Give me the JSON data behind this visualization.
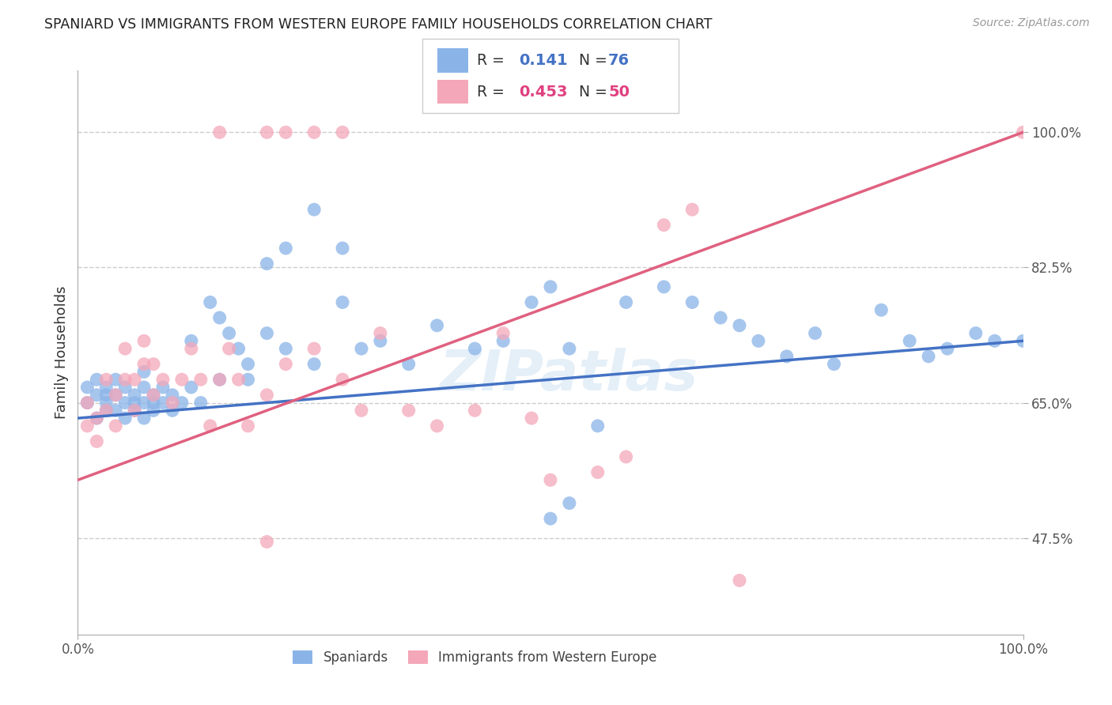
{
  "title": "SPANIARD VS IMMIGRANTS FROM WESTERN EUROPE FAMILY HOUSEHOLDS CORRELATION CHART",
  "source": "Source: ZipAtlas.com",
  "ylabel": "Family Households",
  "x_min": 0.0,
  "x_max": 100.0,
  "y_min": 35.0,
  "y_max": 108.0,
  "y_ticks": [
    47.5,
    65.0,
    82.5,
    100.0
  ],
  "y_tick_labels": [
    "47.5%",
    "65.0%",
    "82.5%",
    "100.0%"
  ],
  "x_ticks": [
    0.0,
    100.0
  ],
  "x_tick_labels": [
    "0.0%",
    "100.0%"
  ],
  "R_blue": 0.141,
  "N_blue": 76,
  "R_pink": 0.453,
  "N_pink": 50,
  "legend_label_blue": "Spaniards",
  "legend_label_pink": "Immigrants from Western Europe",
  "blue_color": "#8ab4e8",
  "pink_color": "#f4a7b9",
  "blue_line_color": "#4472c4",
  "pink_line_color": "#e06080",
  "blue_scatter": {
    "x": [
      1,
      1,
      2,
      2,
      2,
      3,
      3,
      3,
      3,
      4,
      4,
      4,
      5,
      5,
      5,
      6,
      6,
      6,
      7,
      7,
      7,
      7,
      8,
      8,
      8,
      9,
      9,
      10,
      10,
      11,
      12,
      12,
      13,
      14,
      15,
      15,
      16,
      17,
      18,
      18,
      20,
      22,
      25,
      28,
      30,
      32,
      35,
      38,
      42,
      45,
      48,
      50,
      52,
      55,
      58,
      62,
      65,
      68,
      70,
      72,
      75,
      78,
      80,
      85,
      88,
      90,
      92,
      95,
      97,
      100,
      22,
      28,
      50,
      52,
      20,
      25
    ],
    "y": [
      65,
      67,
      63,
      66,
      68,
      64,
      65,
      67,
      66,
      64,
      66,
      68,
      63,
      65,
      67,
      64,
      66,
      65,
      63,
      65,
      67,
      69,
      64,
      66,
      65,
      67,
      65,
      64,
      66,
      65,
      67,
      73,
      65,
      78,
      76,
      68,
      74,
      72,
      70,
      68,
      74,
      72,
      70,
      78,
      72,
      73,
      70,
      75,
      72,
      73,
      78,
      80,
      72,
      62,
      78,
      80,
      78,
      76,
      75,
      73,
      71,
      74,
      70,
      77,
      73,
      71,
      72,
      74,
      73,
      73,
      85,
      85,
      50,
      52,
      83,
      90
    ]
  },
  "pink_scatter": {
    "x": [
      1,
      1,
      2,
      2,
      3,
      3,
      4,
      4,
      5,
      5,
      6,
      6,
      7,
      7,
      8,
      8,
      9,
      10,
      11,
      12,
      13,
      14,
      15,
      16,
      17,
      18,
      20,
      22,
      25,
      28,
      30,
      32,
      35,
      38,
      42,
      45,
      48,
      50,
      55,
      58,
      62,
      65,
      70,
      15,
      20,
      22,
      25,
      28,
      20,
      100
    ],
    "y": [
      62,
      65,
      60,
      63,
      64,
      68,
      62,
      66,
      68,
      72,
      64,
      68,
      70,
      73,
      66,
      70,
      68,
      65,
      68,
      72,
      68,
      62,
      68,
      72,
      68,
      62,
      66,
      70,
      72,
      68,
      64,
      74,
      64,
      62,
      64,
      74,
      63,
      55,
      56,
      58,
      88,
      90,
      42,
      100,
      100,
      100,
      100,
      100,
      47,
      100
    ]
  },
  "blue_trend": [
    63.0,
    73.0
  ],
  "pink_trend": [
    55.0,
    100.0
  ]
}
